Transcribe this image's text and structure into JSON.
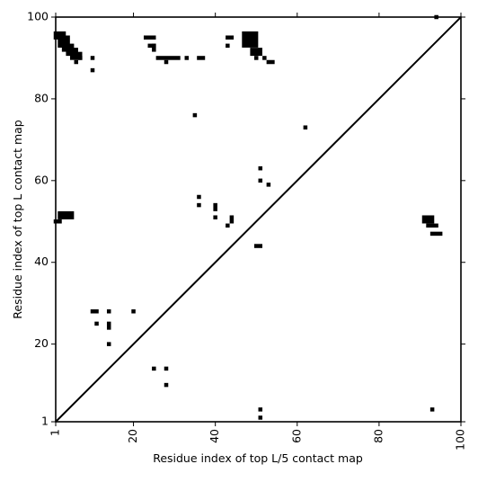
{
  "chart_data": {
    "type": "heatmap",
    "title": "",
    "xlabel": "Residue index of top L/5 contact map",
    "ylabel": "Residue index of top L contact map",
    "xlim": [
      1,
      100
    ],
    "ylim": [
      1,
      100
    ],
    "x_ticks": [
      {
        "value": 1,
        "label": "1"
      },
      {
        "value": 20,
        "label": "20"
      },
      {
        "value": 40,
        "label": "40"
      },
      {
        "value": 60,
        "label": "60"
      },
      {
        "value": 80,
        "label": "80"
      },
      {
        "value": 100,
        "label": "100"
      }
    ],
    "y_ticks": [
      {
        "value": 1,
        "label": "1"
      },
      {
        "value": 20,
        "label": "20"
      },
      {
        "value": 40,
        "label": "40"
      },
      {
        "value": 60,
        "label": "60"
      },
      {
        "value": 80,
        "label": "80"
      },
      {
        "value": 100,
        "label": "100"
      }
    ],
    "x_tick_label_rotation": -90,
    "cell_color": "#000000",
    "background_color": "#ffffff",
    "diagonal": [
      [
        1,
        1
      ],
      [
        100,
        100
      ]
    ],
    "contacts": [
      [
        1,
        95,
        3,
        2
      ],
      [
        2,
        93,
        3,
        3
      ],
      [
        3,
        92,
        3,
        2
      ],
      [
        4,
        91,
        3,
        2
      ],
      [
        5,
        90,
        3,
        2
      ],
      [
        6,
        89,
        1,
        1
      ],
      [
        7,
        90,
        1,
        1
      ],
      [
        10,
        90,
        1,
        1
      ],
      [
        10,
        87,
        1,
        1
      ],
      [
        23,
        95,
        3,
        1
      ],
      [
        25,
        92,
        1,
        2
      ],
      [
        24,
        93,
        2,
        1
      ],
      [
        26,
        90,
        6,
        1
      ],
      [
        28,
        89,
        1,
        1
      ],
      [
        33,
        90,
        1,
        1
      ],
      [
        36,
        90,
        2,
        1
      ],
      [
        35,
        76,
        1,
        1
      ],
      [
        43,
        95,
        2,
        1
      ],
      [
        43,
        93,
        1,
        1
      ],
      [
        47,
        93,
        4,
        4
      ],
      [
        49,
        91,
        3,
        2
      ],
      [
        50,
        90,
        1,
        1
      ],
      [
        52,
        90,
        1,
        1
      ],
      [
        53,
        89,
        2,
        1
      ],
      [
        62,
        73,
        1,
        1
      ],
      [
        94,
        100,
        1,
        1
      ],
      [
        51,
        63,
        1,
        1
      ],
      [
        51,
        60,
        1,
        1
      ],
      [
        53,
        59,
        1,
        1
      ],
      [
        36,
        56,
        1,
        1
      ],
      [
        36,
        54,
        1,
        1
      ],
      [
        40,
        53,
        1,
        2
      ],
      [
        44,
        50,
        1,
        2
      ],
      [
        40,
        51,
        1,
        1
      ],
      [
        43,
        49,
        1,
        1
      ],
      [
        1,
        50,
        2,
        1
      ],
      [
        2,
        51,
        4,
        2
      ],
      [
        50,
        44,
        2,
        1
      ],
      [
        91,
        50,
        3,
        2
      ],
      [
        92,
        49,
        3,
        1
      ],
      [
        93,
        47,
        3,
        1
      ],
      [
        10,
        28,
        2,
        1
      ],
      [
        14,
        28,
        1,
        1
      ],
      [
        20,
        28,
        1,
        1
      ],
      [
        11,
        25,
        1,
        1
      ],
      [
        14,
        24,
        1,
        2
      ],
      [
        14,
        20,
        1,
        1
      ],
      [
        25,
        14,
        1,
        1
      ],
      [
        28,
        14,
        1,
        1
      ],
      [
        28,
        10,
        1,
        1
      ],
      [
        51,
        4,
        1,
        1
      ],
      [
        51,
        2,
        1,
        1
      ],
      [
        93,
        4,
        1,
        1
      ]
    ]
  }
}
